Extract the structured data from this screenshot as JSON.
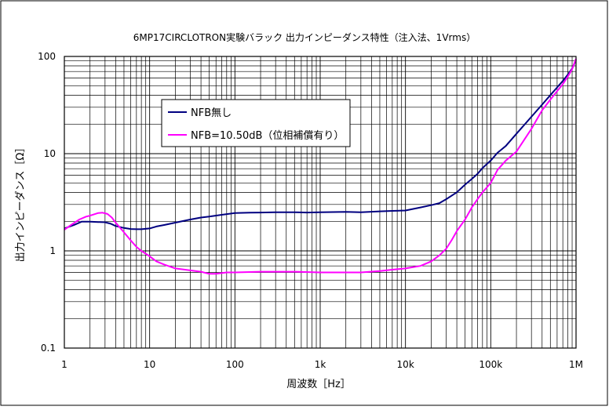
{
  "chart_data": {
    "type": "line",
    "title": "6MP17CIRCLOTRON実験バラック 出力インピーダンス特性（注入法、1Vrms）",
    "xlabel": "周波数［Hz］",
    "ylabel": "出力インピーダンス［Ω］",
    "x_scale": "log",
    "y_scale": "log",
    "xlim": [
      1,
      1000000
    ],
    "ylim": [
      0.1,
      100
    ],
    "x_ticks": [
      {
        "value": 1,
        "label": "1"
      },
      {
        "value": 10,
        "label": "10"
      },
      {
        "value": 100,
        "label": "100"
      },
      {
        "value": 1000,
        "label": "1k"
      },
      {
        "value": 10000,
        "label": "10k"
      },
      {
        "value": 100000,
        "label": "100k"
      },
      {
        "value": 1000000,
        "label": "1M"
      }
    ],
    "y_ticks": [
      {
        "value": 0.1,
        "label": "0.1"
      },
      {
        "value": 1,
        "label": "1"
      },
      {
        "value": 10,
        "label": "10"
      },
      {
        "value": 100,
        "label": "100"
      }
    ],
    "grid": true,
    "legend_position": "upper-left",
    "series": [
      {
        "name": "NFB無し",
        "color": "#000080",
        "points": [
          [
            1,
            1.7
          ],
          [
            1.3,
            1.85
          ],
          [
            1.6,
            2.0
          ],
          [
            2,
            2.0
          ],
          [
            2.5,
            1.98
          ],
          [
            3,
            1.97
          ],
          [
            3.5,
            1.9
          ],
          [
            4,
            1.8
          ],
          [
            5,
            1.72
          ],
          [
            6,
            1.68
          ],
          [
            7,
            1.67
          ],
          [
            8,
            1.67
          ],
          [
            10,
            1.7
          ],
          [
            12,
            1.78
          ],
          [
            15,
            1.85
          ],
          [
            20,
            1.95
          ],
          [
            30,
            2.1
          ],
          [
            40,
            2.2
          ],
          [
            50,
            2.25
          ],
          [
            70,
            2.35
          ],
          [
            100,
            2.45
          ],
          [
            150,
            2.47
          ],
          [
            200,
            2.48
          ],
          [
            300,
            2.5
          ],
          [
            500,
            2.5
          ],
          [
            700,
            2.48
          ],
          [
            1000,
            2.5
          ],
          [
            2000,
            2.52
          ],
          [
            3000,
            2.5
          ],
          [
            5000,
            2.55
          ],
          [
            7000,
            2.58
          ],
          [
            10000,
            2.6
          ],
          [
            15000,
            2.8
          ],
          [
            20000,
            2.95
          ],
          [
            25000,
            3.1
          ],
          [
            30000,
            3.4
          ],
          [
            40000,
            4.0
          ],
          [
            50000,
            4.8
          ],
          [
            60000,
            5.5
          ],
          [
            70000,
            6.2
          ],
          [
            80000,
            7.1
          ],
          [
            100000,
            8.5
          ],
          [
            120000,
            10.2
          ],
          [
            150000,
            12.0
          ],
          [
            200000,
            16.0
          ],
          [
            300000,
            24.0
          ],
          [
            400000,
            32.0
          ],
          [
            500000,
            40.0
          ],
          [
            600000,
            48.0
          ],
          [
            700000,
            56.0
          ],
          [
            800000,
            65.0
          ],
          [
            900000,
            75.0
          ],
          [
            1000000,
            92.0
          ]
        ]
      },
      {
        "name": "NFB=10.50dB（位相補償有り）",
        "color": "#ff00ff",
        "points": [
          [
            1,
            1.65
          ],
          [
            1.2,
            1.85
          ],
          [
            1.5,
            2.1
          ],
          [
            1.8,
            2.25
          ],
          [
            2,
            2.3
          ],
          [
            2.5,
            2.45
          ],
          [
            2.8,
            2.47
          ],
          [
            3.2,
            2.4
          ],
          [
            3.6,
            2.2
          ],
          [
            4,
            1.95
          ],
          [
            5,
            1.55
          ],
          [
            6,
            1.28
          ],
          [
            7,
            1.1
          ],
          [
            8,
            1.0
          ],
          [
            10,
            0.88
          ],
          [
            12,
            0.78
          ],
          [
            15,
            0.72
          ],
          [
            20,
            0.66
          ],
          [
            30,
            0.63
          ],
          [
            40,
            0.61
          ],
          [
            50,
            0.58
          ],
          [
            60,
            0.58
          ],
          [
            80,
            0.6
          ],
          [
            100,
            0.6
          ],
          [
            200,
            0.61
          ],
          [
            500,
            0.61
          ],
          [
            1000,
            0.6
          ],
          [
            2000,
            0.6
          ],
          [
            3000,
            0.6
          ],
          [
            5000,
            0.62
          ],
          [
            7000,
            0.64
          ],
          [
            10000,
            0.66
          ],
          [
            15000,
            0.7
          ],
          [
            20000,
            0.78
          ],
          [
            25000,
            0.9
          ],
          [
            30000,
            1.05
          ],
          [
            35000,
            1.3
          ],
          [
            40000,
            1.6
          ],
          [
            50000,
            2.1
          ],
          [
            60000,
            2.8
          ],
          [
            70000,
            3.4
          ],
          [
            80000,
            4.0
          ],
          [
            90000,
            4.5
          ],
          [
            100000,
            5.0
          ],
          [
            120000,
            6.8
          ],
          [
            150000,
            8.5
          ],
          [
            200000,
            10.5
          ],
          [
            300000,
            18.0
          ],
          [
            400000,
            28.0
          ],
          [
            500000,
            36.0
          ],
          [
            600000,
            44.0
          ],
          [
            700000,
            52.0
          ],
          [
            800000,
            62.0
          ],
          [
            900000,
            74.0
          ],
          [
            1000000,
            95.0
          ]
        ]
      }
    ]
  },
  "colors": {
    "background": "#ffffff",
    "border": "#000000",
    "grid": "#000000"
  }
}
